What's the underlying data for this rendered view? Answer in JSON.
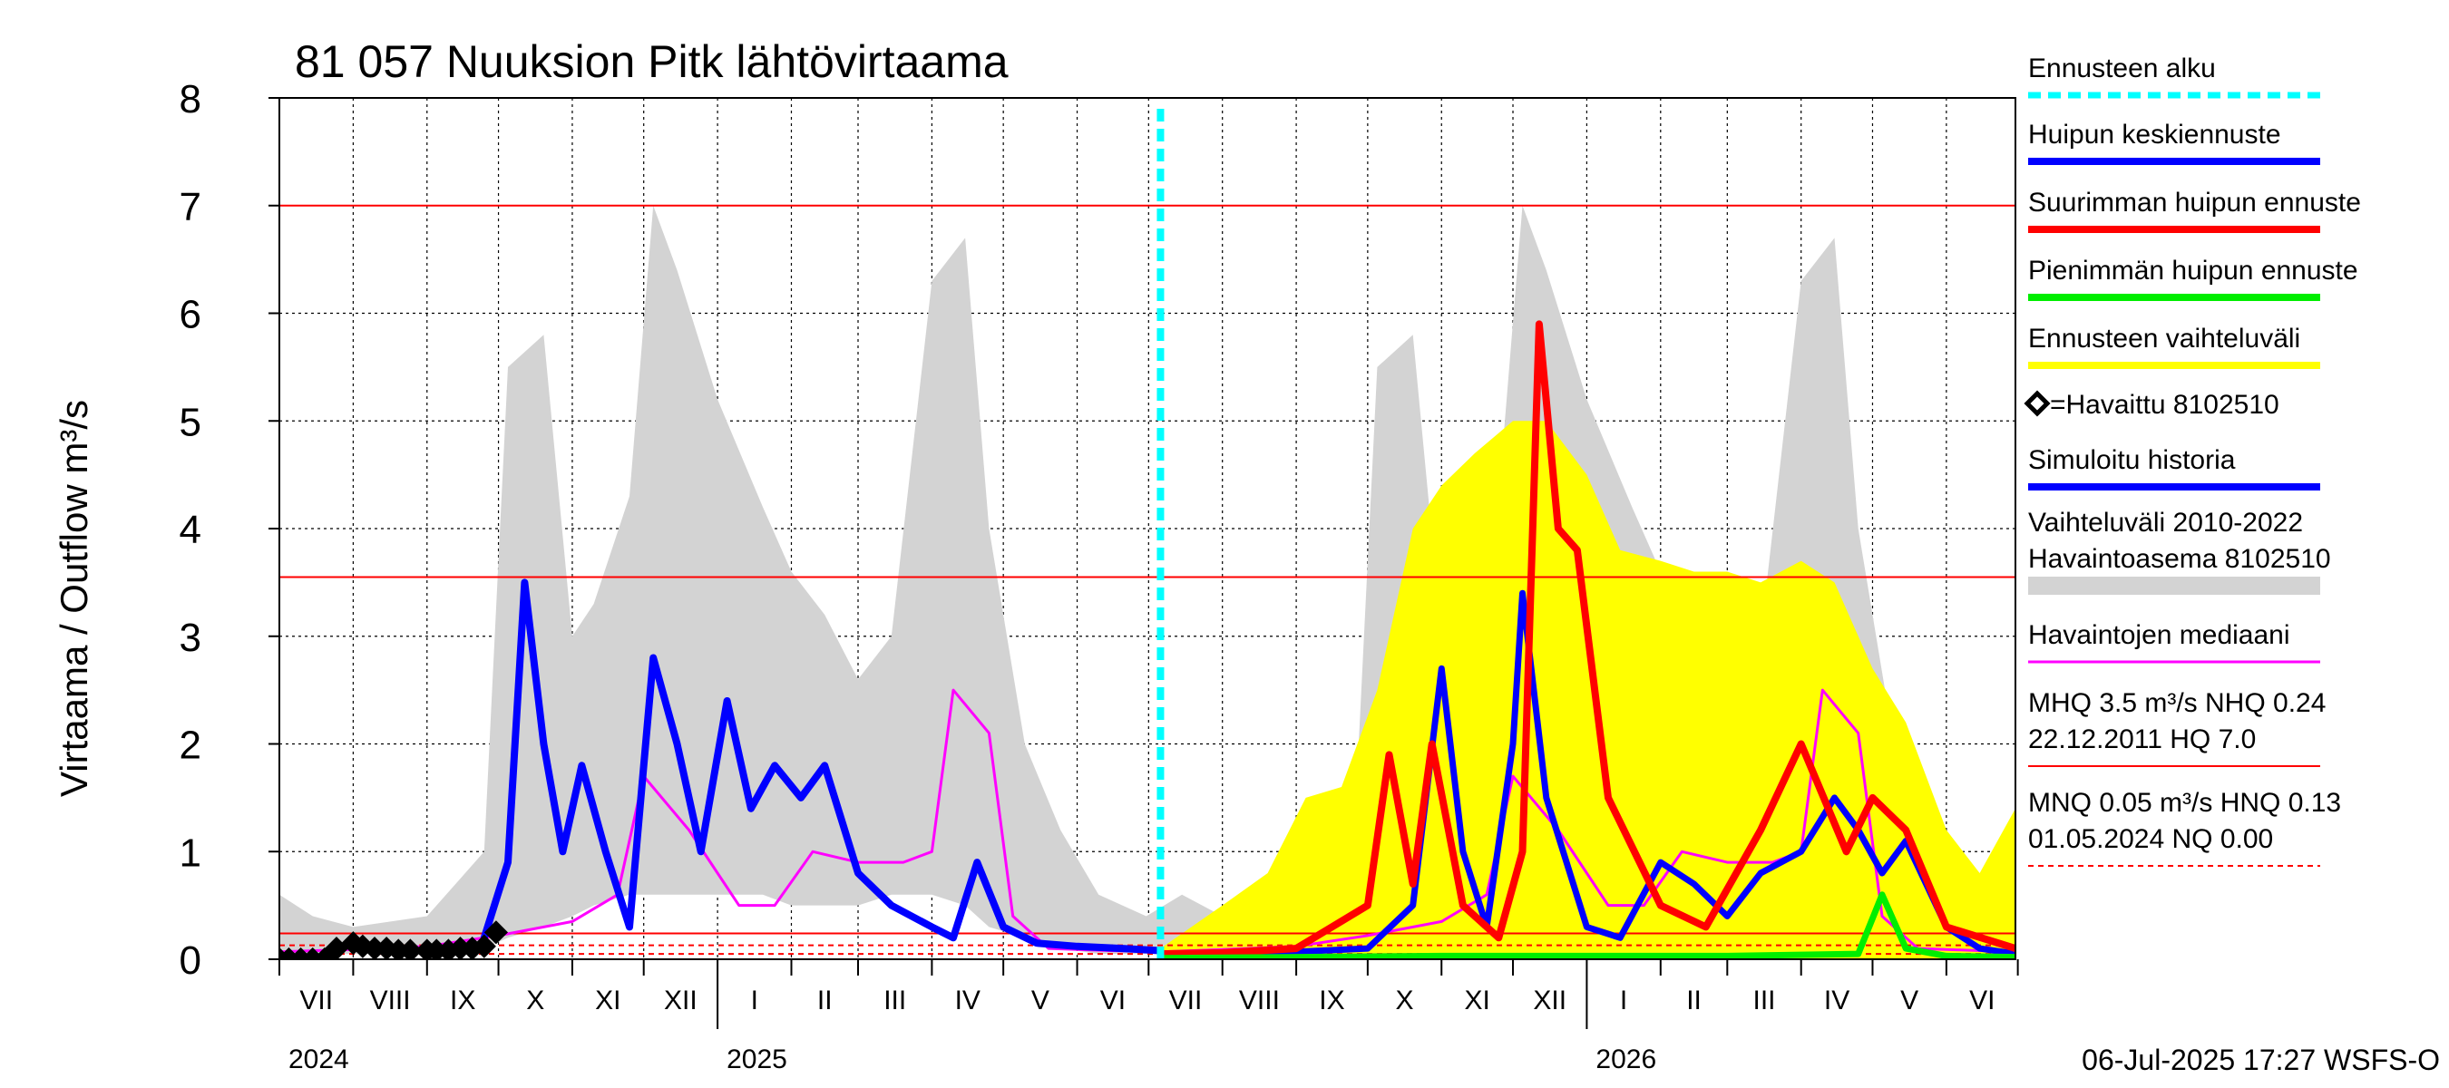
{
  "chart_data": {
    "type": "line",
    "title": "81 057 Nuuksion Pitk lähtövirtaama",
    "ylabel": "Virtaama / Outflow     m³/s",
    "ylim": [
      0,
      8
    ],
    "yticks": [
      "0",
      "1",
      "2",
      "3",
      "4",
      "5",
      "6",
      "7",
      "8"
    ],
    "months": [
      "VII",
      "VIII",
      "IX",
      "X",
      "XI",
      "XII",
      "I",
      "II",
      "III",
      "IV",
      "V",
      "VI",
      "VII",
      "VIII",
      "IX",
      "X",
      "XI",
      "XII",
      "I",
      "II",
      "III",
      "IV",
      "V",
      "VI"
    ],
    "years": [
      "2024",
      "2025",
      "2026"
    ],
    "x_start": "2024-07-01",
    "x_end": "2026-06-30",
    "forecast_start": "2025-07-06",
    "hlines": [
      {
        "value": 7.0,
        "color": "#ff0000",
        "style": "solid"
      },
      {
        "value": 3.55,
        "color": "#ff0000",
        "style": "solid"
      },
      {
        "value": 0.24,
        "color": "#ff0000",
        "style": "solid"
      },
      {
        "value": 0.13,
        "color": "#ff0000",
        "style": "dashed"
      },
      {
        "value": 0.05,
        "color": "#ff0000",
        "style": "dashed"
      }
    ],
    "series": [
      {
        "name": "Vaihteluväli 2010-2022 Havaintoasema 8102510",
        "kind": "band",
        "color": "#d3d3d3",
        "x": [
          "2024-07-01",
          "2024-07-15",
          "2024-08-01",
          "2024-09-01",
          "2024-09-25",
          "2024-10-05",
          "2024-10-20",
          "2024-11-01",
          "2024-11-10",
          "2024-11-25",
          "2024-12-05",
          "2024-12-15",
          "2025-01-01",
          "2025-01-20",
          "2025-02-01",
          "2025-02-15",
          "2025-03-01",
          "2025-03-15",
          "2025-04-01",
          "2025-04-15",
          "2025-04-25",
          "2025-05-10",
          "2025-05-25",
          "2025-06-10",
          "2025-06-30",
          "2025-07-15",
          "2025-08-01",
          "2025-09-01",
          "2025-09-25",
          "2025-10-05",
          "2025-10-20",
          "2025-11-01",
          "2025-11-10",
          "2025-11-25",
          "2025-12-05",
          "2025-12-15",
          "2026-01-01",
          "2026-01-20",
          "2026-02-01",
          "2026-02-15",
          "2026-03-01",
          "2026-03-15",
          "2026-04-01",
          "2026-04-15",
          "2026-04-25",
          "2026-05-10",
          "2026-05-25",
          "2026-06-10",
          "2026-06-30"
        ],
        "upper": [
          0.6,
          0.4,
          0.3,
          0.4,
          1.0,
          5.5,
          5.8,
          3.0,
          3.3,
          4.3,
          7.0,
          6.4,
          5.2,
          4.2,
          3.6,
          3.2,
          2.6,
          3.0,
          6.3,
          6.7,
          4.0,
          2.0,
          1.2,
          0.6,
          0.4,
          0.6,
          0.4,
          0.4,
          1.0,
          5.5,
          5.8,
          3.0,
          3.3,
          4.3,
          7.0,
          6.4,
          5.2,
          4.2,
          3.6,
          3.2,
          2.6,
          3.0,
          6.3,
          6.7,
          4.0,
          2.0,
          1.2,
          0.6,
          0.4
        ],
        "lower": [
          0.05,
          0.05,
          0.05,
          0.05,
          0.1,
          0.2,
          0.3,
          0.4,
          0.5,
          0.6,
          0.6,
          0.6,
          0.6,
          0.6,
          0.5,
          0.5,
          0.5,
          0.6,
          0.6,
          0.5,
          0.3,
          0.2,
          0.1,
          0.05,
          0.05,
          0.05,
          0.05,
          0.05,
          0.1,
          0.2,
          0.3,
          0.4,
          0.5,
          0.6,
          0.6,
          0.6,
          0.6,
          0.6,
          0.5,
          0.5,
          0.5,
          0.6,
          0.6,
          0.5,
          0.3,
          0.2,
          0.1,
          0.05,
          0.05
        ]
      },
      {
        "name": "Ennusteen vaihteluväli",
        "kind": "band",
        "color": "#ffff00",
        "x": [
          "2025-07-06",
          "2025-08-01",
          "2025-08-20",
          "2025-09-05",
          "2025-09-20",
          "2025-10-05",
          "2025-10-20",
          "2025-11-01",
          "2025-11-15",
          "2025-12-01",
          "2025-12-15",
          "2026-01-01",
          "2026-01-15",
          "2026-02-01",
          "2026-02-15",
          "2026-03-01",
          "2026-03-15",
          "2026-04-01",
          "2026-04-15",
          "2026-05-01",
          "2026-05-15",
          "2026-06-01",
          "2026-06-15",
          "2026-06-30"
        ],
        "upper": [
          0.1,
          0.5,
          0.8,
          1.5,
          1.6,
          2.5,
          4.0,
          4.4,
          4.7,
          5.0,
          5.0,
          4.5,
          3.8,
          3.7,
          3.6,
          3.6,
          3.5,
          3.7,
          3.5,
          2.7,
          2.2,
          1.2,
          0.8,
          1.4
        ],
        "lower": [
          0.0,
          0.0,
          0.0,
          0.0,
          0.0,
          0.0,
          0.0,
          0.0,
          0.0,
          0.0,
          0.0,
          0.0,
          0.0,
          0.0,
          0.0,
          0.0,
          0.0,
          0.0,
          0.0,
          0.0,
          0.0,
          0.0,
          0.0,
          0.0
        ]
      },
      {
        "name": "Havaintojen mediaani",
        "kind": "line",
        "color": "#ff00ff",
        "x": [
          "2024-07-01",
          "2024-08-01",
          "2024-09-01",
          "2024-10-01",
          "2024-11-01",
          "2024-11-20",
          "2024-12-01",
          "2024-12-20",
          "2025-01-01",
          "2025-01-10",
          "2025-01-25",
          "2025-02-10",
          "2025-03-01",
          "2025-03-20",
          "2025-04-01",
          "2025-04-10",
          "2025-04-25",
          "2025-05-05",
          "2025-05-20",
          "2025-06-15",
          "2025-07-06",
          "2025-08-01",
          "2025-09-01",
          "2025-10-01",
          "2025-11-01",
          "2025-11-20",
          "2025-12-01",
          "2025-12-20",
          "2026-01-01",
          "2026-01-10",
          "2026-01-25",
          "2026-02-10",
          "2026-03-01",
          "2026-03-20",
          "2026-04-01",
          "2026-04-10",
          "2026-04-25",
          "2026-05-05",
          "2026-05-20",
          "2026-06-15",
          "2026-06-30"
        ],
        "y": [
          0.07,
          0.09,
          0.12,
          0.22,
          0.35,
          0.6,
          1.7,
          1.2,
          0.8,
          0.5,
          0.5,
          1.0,
          0.9,
          0.9,
          1.0,
          2.5,
          2.1,
          0.4,
          0.1,
          0.08,
          0.07,
          0.09,
          0.12,
          0.22,
          0.35,
          0.6,
          1.7,
          1.2,
          0.8,
          0.5,
          0.5,
          1.0,
          0.9,
          0.9,
          1.0,
          2.5,
          2.1,
          0.4,
          0.1,
          0.08,
          0.07
        ]
      },
      {
        "name": "Simuloitu historia",
        "kind": "line",
        "color": "#0000ff",
        "x": [
          "2024-09-25",
          "2024-10-05",
          "2024-10-12",
          "2024-10-20",
          "2024-10-28",
          "2024-11-05",
          "2024-11-15",
          "2024-11-25",
          "2024-12-05",
          "2024-12-15",
          "2024-12-25",
          "2025-01-05",
          "2025-01-15",
          "2025-01-25",
          "2025-02-05",
          "2025-02-15",
          "2025-03-01",
          "2025-03-15",
          "2025-04-01",
          "2025-04-10",
          "2025-04-20",
          "2025-05-01",
          "2025-05-15",
          "2025-06-01",
          "2025-06-20",
          "2025-07-06"
        ],
        "y": [
          0.2,
          0.9,
          3.5,
          2.0,
          1.0,
          1.8,
          1.0,
          0.3,
          2.8,
          2.0,
          1.0,
          2.4,
          1.4,
          1.8,
          1.5,
          1.8,
          0.8,
          0.5,
          0.3,
          0.2,
          0.9,
          0.3,
          0.15,
          0.12,
          0.1,
          0.08
        ]
      },
      {
        "name": "Huipun keskiennuste",
        "kind": "line",
        "color": "#0000ff",
        "x": [
          "2025-07-06",
          "2025-08-01",
          "2025-09-01",
          "2025-10-01",
          "2025-10-20",
          "2025-11-01",
          "2025-11-10",
          "2025-11-20",
          "2025-12-01",
          "2025-12-05",
          "2025-12-15",
          "2026-01-01",
          "2026-01-15",
          "2026-02-01",
          "2026-02-15",
          "2026-03-01",
          "2026-03-15",
          "2026-04-01",
          "2026-04-15",
          "2026-04-25",
          "2026-05-05",
          "2026-05-15",
          "2026-06-01",
          "2026-06-15",
          "2026-06-30"
        ],
        "y": [
          0.05,
          0.06,
          0.07,
          0.1,
          0.5,
          2.7,
          1.0,
          0.3,
          2.0,
          3.4,
          1.5,
          0.3,
          0.2,
          0.9,
          0.7,
          0.4,
          0.8,
          1.0,
          1.5,
          1.2,
          0.8,
          1.1,
          0.3,
          0.1,
          0.05
        ]
      },
      {
        "name": "Suurimman huipun ennuste",
        "kind": "line",
        "color": "#ff0000",
        "x": [
          "2025-07-06",
          "2025-08-01",
          "2025-09-01",
          "2025-10-01",
          "2025-10-10",
          "2025-10-20",
          "2025-10-28",
          "2025-11-10",
          "2025-11-25",
          "2025-12-05",
          "2025-12-12",
          "2025-12-20",
          "2025-12-28",
          "2026-01-10",
          "2026-02-01",
          "2026-02-20",
          "2026-03-15",
          "2026-04-01",
          "2026-04-20",
          "2026-05-01",
          "2026-05-15",
          "2026-06-01",
          "2026-06-30"
        ],
        "y": [
          0.05,
          0.06,
          0.1,
          0.5,
          1.9,
          0.7,
          2.0,
          0.5,
          0.2,
          1.0,
          5.9,
          4.0,
          3.8,
          1.5,
          0.5,
          0.3,
          1.2,
          2.0,
          1.0,
          1.5,
          1.2,
          0.3,
          0.1
        ]
      },
      {
        "name": "Pienimmän huipun ennuste",
        "kind": "line",
        "color": "#00ee00",
        "x": [
          "2025-07-06",
          "2025-09-01",
          "2025-11-01",
          "2026-01-01",
          "2026-03-01",
          "2026-04-25",
          "2026-05-05",
          "2026-05-15",
          "2026-06-01",
          "2026-06-30"
        ],
        "y": [
          0.01,
          0.02,
          0.03,
          0.03,
          0.03,
          0.05,
          0.6,
          0.1,
          0.03,
          0.02
        ]
      },
      {
        "name": "=Havaittu 8102510",
        "kind": "markers",
        "color": "#000000",
        "x": [
          "2024-07-01",
          "2024-07-05",
          "2024-07-10",
          "2024-07-15",
          "2024-07-20",
          "2024-07-25",
          "2024-08-01",
          "2024-08-05",
          "2024-08-10",
          "2024-08-15",
          "2024-08-20",
          "2024-08-25",
          "2024-09-01",
          "2024-09-05",
          "2024-09-10",
          "2024-09-15",
          "2024-09-20",
          "2024-09-25",
          "2024-09-30"
        ],
        "y": [
          0.0,
          0.0,
          0.0,
          0.0,
          0.0,
          0.1,
          0.15,
          0.12,
          0.1,
          0.1,
          0.08,
          0.08,
          0.08,
          0.08,
          0.08,
          0.1,
          0.1,
          0.12,
          0.25
        ]
      }
    ],
    "legend": [
      {
        "label": "Ennusteen alku",
        "color": "#00ffff",
        "style": "dashed"
      },
      {
        "label": "Huipun keskiennuste",
        "color": "#0000ff",
        "style": "solid"
      },
      {
        "label": "Suurimman huipun ennuste",
        "color": "#ff0000",
        "style": "solid"
      },
      {
        "label": "Pienimmän huipun ennuste",
        "color": "#00ee00",
        "style": "solid"
      },
      {
        "label": "Ennusteen vaihteluväli",
        "color": "#ffff00",
        "style": "solid"
      },
      {
        "label": "=Havaittu 8102510",
        "color": "#000000",
        "style": "marker"
      },
      {
        "label": "Simuloitu historia",
        "color": "#0000ff",
        "style": "solid"
      },
      {
        "label": "Vaihteluväli 2010-2022",
        "label2": " Havaintoasema 8102510",
        "color": "#d3d3d3",
        "style": "solid"
      },
      {
        "label": "Havaintojen mediaani",
        "color": "#ff00ff",
        "style": "solid"
      },
      {
        "label": "MHQ  3.5 m³/s NHQ 0.24",
        "label2": "22.12.2011 HQ  7.0",
        "color": "#ff0000",
        "style": "solid"
      },
      {
        "label": "MNQ 0.05 m³/s HNQ 0.13",
        "label2": "01.05.2024 NQ 0.00",
        "color": "#ff0000",
        "style": "dashed"
      }
    ],
    "footer": "06-Jul-2025 17:27 WSFS-O"
  }
}
